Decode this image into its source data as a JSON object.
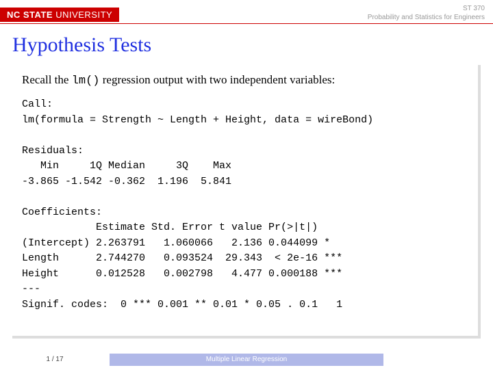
{
  "header": {
    "logo_bold": "NC STATE",
    "logo_thin": " UNIVERSITY",
    "line1": "ST 370",
    "line2": "Probability and Statistics for Engineers"
  },
  "title": "Hypothesis Tests",
  "intro_pre": "Recall the ",
  "intro_code": "lm()",
  "intro_post": " regression output with two independent variables:",
  "code": "Call:\nlm(formula = Strength ~ Length + Height, data = wireBond)\n\nResiduals:\n   Min     1Q Median     3Q    Max\n-3.865 -1.542 -0.362  1.196  5.841\n\nCoefficients:\n            Estimate Std. Error t value Pr(>|t|)\n(Intercept) 2.263791   1.060066   2.136 0.044099 *\nLength      2.744270   0.093524  29.343  < 2e-16 ***\nHeight      0.012528   0.002798   4.477 0.000188 ***\n---\nSignif. codes:  0 *** 0.001 ** 0.01 * 0.05 . 0.1   1",
  "footer": {
    "page": "1 / 17",
    "section": "Multiple Linear Regression"
  }
}
